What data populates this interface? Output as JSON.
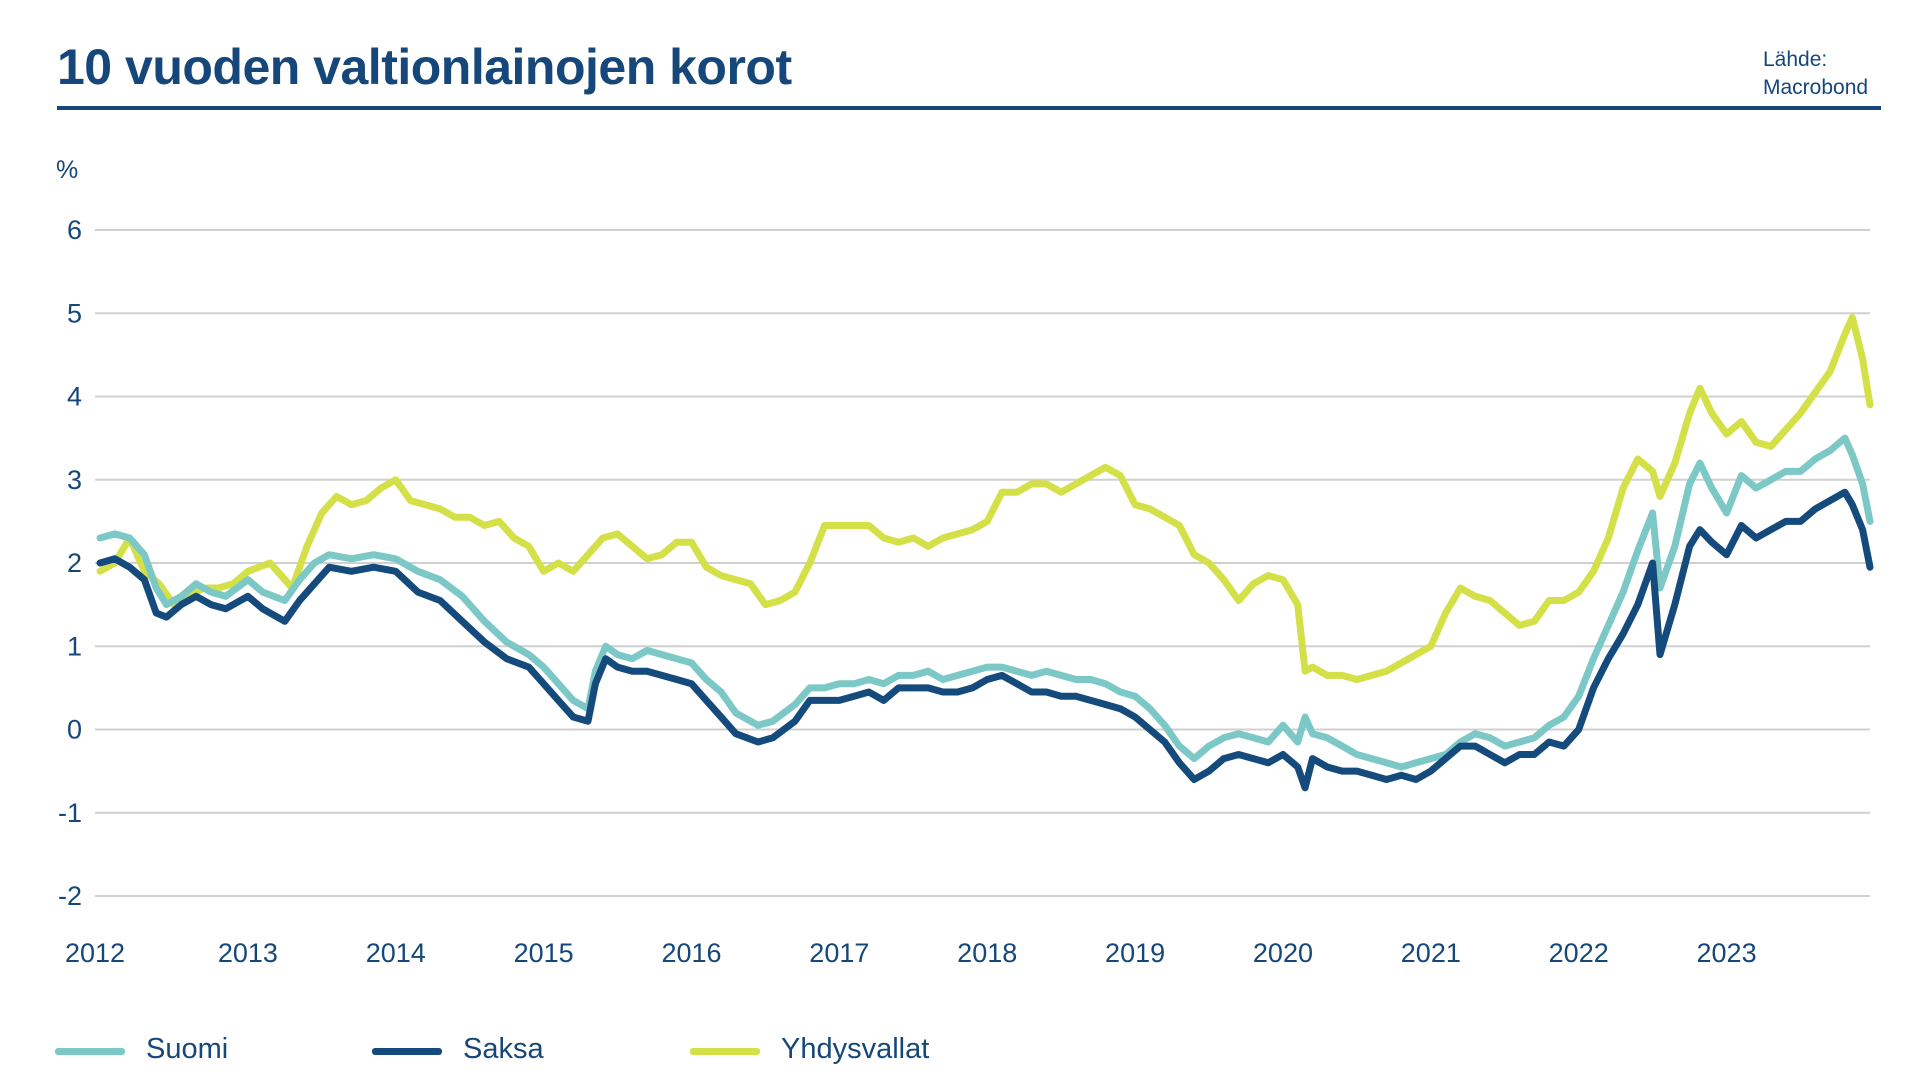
{
  "title": "10 vuoden valtionlainojen korot",
  "source": {
    "line1": "Lähde:",
    "line2": "Macrobond"
  },
  "colors": {
    "title": "#15477a",
    "grid": "#d0d0d0",
    "suomi": "#7cc8c6",
    "saksa": "#154a7d",
    "yhdysvallat": "#d4e047"
  },
  "chart_data": {
    "type": "line",
    "title": "10 vuoden valtionlainojen korot",
    "ylabel": "%",
    "xlabel": "",
    "ylim": [
      -2,
      6
    ],
    "yticks": [
      6,
      5,
      4,
      3,
      2,
      1,
      0,
      -1,
      -2
    ],
    "ytick_labels": [
      "6",
      "5",
      "4",
      "3",
      "2",
      "1",
      "0",
      "-1",
      "-2"
    ],
    "xlim": [
      2012.0,
      2023.97
    ],
    "xticks": [
      2012,
      2013,
      2014,
      2015,
      2016,
      2017,
      2018,
      2019,
      2020,
      2021,
      2022,
      2023
    ],
    "xtick_labels": [
      "2012",
      "2013",
      "2014",
      "2015",
      "2016",
      "2017",
      "2018",
      "2019",
      "2020",
      "2021",
      "2022",
      "2023"
    ],
    "grid": true,
    "legend_position": "bottom-left",
    "series": [
      {
        "name": "Suomi",
        "color": "#7cc8c6",
        "x": [
          2012.0,
          2012.1,
          2012.2,
          2012.3,
          2012.38,
          2012.45,
          2012.55,
          2012.65,
          2012.75,
          2012.85,
          2013.0,
          2013.1,
          2013.25,
          2013.35,
          2013.45,
          2013.55,
          2013.7,
          2013.85,
          2014.0,
          2014.15,
          2014.3,
          2014.45,
          2014.6,
          2014.75,
          2014.9,
          2015.0,
          2015.1,
          2015.2,
          2015.3,
          2015.35,
          2015.42,
          2015.5,
          2015.6,
          2015.7,
          2015.8,
          2015.9,
          2016.0,
          2016.1,
          2016.2,
          2016.3,
          2016.45,
          2016.55,
          2016.7,
          2016.8,
          2016.9,
          2017.0,
          2017.1,
          2017.2,
          2017.3,
          2017.4,
          2017.5,
          2017.6,
          2017.7,
          2017.8,
          2017.9,
          2018.0,
          2018.1,
          2018.2,
          2018.3,
          2018.4,
          2018.5,
          2018.6,
          2018.7,
          2018.8,
          2018.9,
          2019.0,
          2019.1,
          2019.2,
          2019.3,
          2019.4,
          2019.5,
          2019.6,
          2019.7,
          2019.8,
          2019.9,
          2020.0,
          2020.1,
          2020.15,
          2020.2,
          2020.3,
          2020.4,
          2020.5,
          2020.6,
          2020.7,
          2020.8,
          2020.9,
          2021.0,
          2021.1,
          2021.2,
          2021.3,
          2021.4,
          2021.5,
          2021.6,
          2021.7,
          2021.8,
          2021.9,
          2022.0,
          2022.1,
          2022.2,
          2022.3,
          2022.4,
          2022.5,
          2022.55,
          2022.65,
          2022.75,
          2022.82,
          2022.9,
          2023.0,
          2023.1,
          2023.2,
          2023.3,
          2023.4,
          2023.5,
          2023.6,
          2023.7,
          2023.8,
          2023.85,
          2023.92,
          2023.97
        ],
        "values": [
          2.3,
          2.35,
          2.3,
          2.1,
          1.7,
          1.5,
          1.6,
          1.75,
          1.65,
          1.6,
          1.8,
          1.65,
          1.55,
          1.8,
          2.0,
          2.1,
          2.05,
          2.1,
          2.05,
          1.9,
          1.8,
          1.6,
          1.3,
          1.05,
          0.9,
          0.75,
          0.55,
          0.35,
          0.25,
          0.7,
          1.0,
          0.9,
          0.85,
          0.95,
          0.9,
          0.85,
          0.8,
          0.6,
          0.45,
          0.2,
          0.05,
          0.1,
          0.3,
          0.5,
          0.5,
          0.55,
          0.55,
          0.6,
          0.55,
          0.65,
          0.65,
          0.7,
          0.6,
          0.65,
          0.7,
          0.75,
          0.75,
          0.7,
          0.65,
          0.7,
          0.65,
          0.6,
          0.6,
          0.55,
          0.45,
          0.4,
          0.25,
          0.05,
          -0.2,
          -0.35,
          -0.2,
          -0.1,
          -0.05,
          -0.1,
          -0.15,
          0.05,
          -0.15,
          0.15,
          -0.05,
          -0.1,
          -0.2,
          -0.3,
          -0.35,
          -0.4,
          -0.45,
          -0.4,
          -0.35,
          -0.3,
          -0.15,
          -0.05,
          -0.1,
          -0.2,
          -0.15,
          -0.1,
          0.05,
          0.15,
          0.4,
          0.85,
          1.25,
          1.65,
          2.15,
          2.6,
          1.7,
          2.2,
          2.95,
          3.2,
          2.9,
          2.6,
          3.05,
          2.9,
          3.0,
          3.1,
          3.1,
          3.25,
          3.35,
          3.5,
          3.3,
          2.95,
          2.5
        ]
      },
      {
        "name": "Saksa",
        "color": "#154a7d",
        "x": [
          2012.0,
          2012.1,
          2012.2,
          2012.3,
          2012.38,
          2012.45,
          2012.55,
          2012.65,
          2012.75,
          2012.85,
          2013.0,
          2013.1,
          2013.25,
          2013.35,
          2013.45,
          2013.55,
          2013.7,
          2013.85,
          2014.0,
          2014.15,
          2014.3,
          2014.45,
          2014.6,
          2014.75,
          2014.9,
          2015.0,
          2015.1,
          2015.2,
          2015.3,
          2015.35,
          2015.42,
          2015.5,
          2015.6,
          2015.7,
          2015.8,
          2015.9,
          2016.0,
          2016.1,
          2016.2,
          2016.3,
          2016.45,
          2016.55,
          2016.7,
          2016.8,
          2016.9,
          2017.0,
          2017.1,
          2017.2,
          2017.3,
          2017.4,
          2017.5,
          2017.6,
          2017.7,
          2017.8,
          2017.9,
          2018.0,
          2018.1,
          2018.2,
          2018.3,
          2018.4,
          2018.5,
          2018.6,
          2018.7,
          2018.8,
          2018.9,
          2019.0,
          2019.1,
          2019.2,
          2019.3,
          2019.4,
          2019.5,
          2019.6,
          2019.7,
          2019.8,
          2019.9,
          2020.0,
          2020.1,
          2020.15,
          2020.2,
          2020.3,
          2020.4,
          2020.5,
          2020.6,
          2020.7,
          2020.8,
          2020.9,
          2021.0,
          2021.1,
          2021.2,
          2021.3,
          2021.4,
          2021.5,
          2021.6,
          2021.7,
          2021.8,
          2021.9,
          2022.0,
          2022.1,
          2022.2,
          2022.3,
          2022.4,
          2022.5,
          2022.55,
          2022.65,
          2022.75,
          2022.82,
          2022.9,
          2023.0,
          2023.1,
          2023.2,
          2023.3,
          2023.4,
          2023.5,
          2023.6,
          2023.7,
          2023.8,
          2023.85,
          2023.92,
          2023.97
        ],
        "values": [
          2.0,
          2.05,
          1.95,
          1.8,
          1.4,
          1.35,
          1.5,
          1.6,
          1.5,
          1.45,
          1.6,
          1.45,
          1.3,
          1.55,
          1.75,
          1.95,
          1.9,
          1.95,
          1.9,
          1.65,
          1.55,
          1.3,
          1.05,
          0.85,
          0.75,
          0.55,
          0.35,
          0.15,
          0.1,
          0.55,
          0.85,
          0.75,
          0.7,
          0.7,
          0.65,
          0.6,
          0.55,
          0.35,
          0.15,
          -0.05,
          -0.15,
          -0.1,
          0.1,
          0.35,
          0.35,
          0.35,
          0.4,
          0.45,
          0.35,
          0.5,
          0.5,
          0.5,
          0.45,
          0.45,
          0.5,
          0.6,
          0.65,
          0.55,
          0.45,
          0.45,
          0.4,
          0.4,
          0.35,
          0.3,
          0.25,
          0.15,
          0.0,
          -0.15,
          -0.4,
          -0.6,
          -0.5,
          -0.35,
          -0.3,
          -0.35,
          -0.4,
          -0.3,
          -0.45,
          -0.7,
          -0.35,
          -0.45,
          -0.5,
          -0.5,
          -0.55,
          -0.6,
          -0.55,
          -0.6,
          -0.5,
          -0.35,
          -0.2,
          -0.2,
          -0.3,
          -0.4,
          -0.3,
          -0.3,
          -0.15,
          -0.2,
          0.0,
          0.5,
          0.85,
          1.15,
          1.5,
          2.0,
          0.9,
          1.5,
          2.2,
          2.4,
          2.25,
          2.1,
          2.45,
          2.3,
          2.4,
          2.5,
          2.5,
          2.65,
          2.75,
          2.85,
          2.7,
          2.4,
          1.95
        ]
      },
      {
        "name": "Yhdysvallat",
        "color": "#d4e047",
        "x": [
          2012.0,
          2012.1,
          2012.2,
          2012.3,
          2012.4,
          2012.5,
          2012.6,
          2012.7,
          2012.8,
          2012.9,
          2013.0,
          2013.15,
          2013.3,
          2013.4,
          2013.5,
          2013.6,
          2013.7,
          2013.8,
          2013.9,
          2014.0,
          2014.1,
          2014.2,
          2014.3,
          2014.4,
          2014.5,
          2014.6,
          2014.7,
          2014.8,
          2014.9,
          2015.0,
          2015.1,
          2015.2,
          2015.3,
          2015.4,
          2015.5,
          2015.6,
          2015.7,
          2015.8,
          2015.9,
          2016.0,
          2016.1,
          2016.2,
          2016.3,
          2016.4,
          2016.5,
          2016.6,
          2016.7,
          2016.8,
          2016.9,
          2017.0,
          2017.1,
          2017.2,
          2017.3,
          2017.4,
          2017.5,
          2017.6,
          2017.7,
          2017.8,
          2017.9,
          2018.0,
          2018.1,
          2018.2,
          2018.3,
          2018.4,
          2018.5,
          2018.6,
          2018.7,
          2018.8,
          2018.9,
          2019.0,
          2019.1,
          2019.2,
          2019.3,
          2019.4,
          2019.5,
          2019.6,
          2019.7,
          2019.8,
          2019.9,
          2020.0,
          2020.1,
          2020.15,
          2020.2,
          2020.3,
          2020.4,
          2020.5,
          2020.6,
          2020.7,
          2020.8,
          2020.9,
          2021.0,
          2021.1,
          2021.2,
          2021.3,
          2021.4,
          2021.5,
          2021.6,
          2021.7,
          2021.8,
          2021.9,
          2022.0,
          2022.1,
          2022.2,
          2022.3,
          2022.4,
          2022.5,
          2022.55,
          2022.65,
          2022.75,
          2022.82,
          2022.9,
          2023.0,
          2023.1,
          2023.2,
          2023.3,
          2023.4,
          2023.5,
          2023.6,
          2023.7,
          2023.8,
          2023.85,
          2023.92,
          2023.97
        ],
        "values": [
          1.9,
          2.0,
          2.3,
          1.9,
          1.75,
          1.5,
          1.6,
          1.7,
          1.7,
          1.75,
          1.9,
          2.0,
          1.7,
          2.2,
          2.6,
          2.8,
          2.7,
          2.75,
          2.9,
          3.0,
          2.75,
          2.7,
          2.65,
          2.55,
          2.55,
          2.45,
          2.5,
          2.3,
          2.2,
          1.9,
          2.0,
          1.9,
          2.1,
          2.3,
          2.35,
          2.2,
          2.05,
          2.1,
          2.25,
          2.25,
          1.95,
          1.85,
          1.8,
          1.75,
          1.5,
          1.55,
          1.65,
          2.0,
          2.45,
          2.45,
          2.45,
          2.45,
          2.3,
          2.25,
          2.3,
          2.2,
          2.3,
          2.35,
          2.4,
          2.5,
          2.85,
          2.85,
          2.95,
          2.95,
          2.85,
          2.95,
          3.05,
          3.15,
          3.05,
          2.7,
          2.65,
          2.55,
          2.45,
          2.1,
          2.0,
          1.8,
          1.55,
          1.75,
          1.85,
          1.8,
          1.5,
          0.7,
          0.75,
          0.65,
          0.65,
          0.6,
          0.65,
          0.7,
          0.8,
          0.9,
          1.0,
          1.4,
          1.7,
          1.6,
          1.55,
          1.4,
          1.25,
          1.3,
          1.55,
          1.55,
          1.65,
          1.9,
          2.3,
          2.9,
          3.25,
          3.1,
          2.8,
          3.2,
          3.8,
          4.1,
          3.8,
          3.55,
          3.7,
          3.45,
          3.4,
          3.6,
          3.8,
          4.05,
          4.3,
          4.75,
          4.95,
          4.45,
          3.9
        ]
      }
    ]
  }
}
